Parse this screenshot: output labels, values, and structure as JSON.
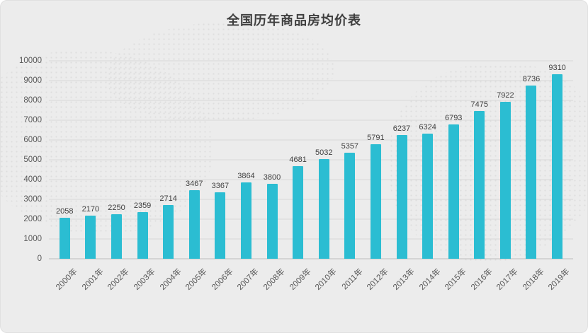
{
  "chart_data": {
    "type": "bar",
    "title": "全国历年商品房均价表",
    "categories": [
      "2000年",
      "2001年",
      "2002年",
      "2003年",
      "2004年",
      "2005年",
      "2006年",
      "2007年",
      "2008年",
      "2009年",
      "2010年",
      "2011年",
      "2012年",
      "2013年",
      "2014年",
      "2015年",
      "2016年",
      "2017年",
      "2018年",
      "2019年"
    ],
    "values": [
      2058,
      2170,
      2250,
      2359,
      2714,
      3467,
      3367,
      3864,
      3800,
      4681,
      5032,
      5357,
      5791,
      6237,
      6324,
      6793,
      7475,
      7922,
      8736,
      9310
    ],
    "xlabel": "",
    "ylabel": "",
    "ylim": [
      0,
      10000
    ],
    "ytick_step": 1000,
    "bar_color": "#2bbdd2",
    "grid": true,
    "legend": "none",
    "background_color": "#ececec"
  }
}
